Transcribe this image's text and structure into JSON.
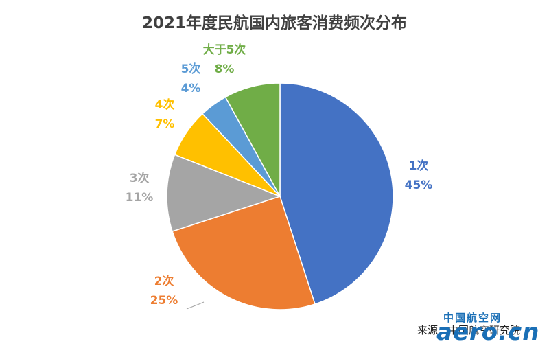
{
  "chart_data": {
    "type": "pie",
    "title": "2021年度民航国内旅客消费频次分布",
    "slices": [
      {
        "label": "1次",
        "value": 45,
        "pct_text": "45%",
        "color": "#4472C4"
      },
      {
        "label": "2次",
        "value": 25,
        "pct_text": "25%",
        "color": "#ED7D31"
      },
      {
        "label": "3次",
        "value": 11,
        "pct_text": "11%",
        "color": "#A5A5A5"
      },
      {
        "label": "4次",
        "value": 7,
        "pct_text": "7%",
        "color": "#FFC000"
      },
      {
        "label": "5次",
        "value": 4,
        "pct_text": "4%",
        "color": "#5B9BD5"
      },
      {
        "label": "大于5次",
        "value": 8,
        "pct_text": "8%",
        "color": "#70AD47"
      }
    ],
    "legend": "none"
  },
  "source_note": "来源：中国航空研究院",
  "watermark": {
    "cn": "中国航空网",
    "en": "aero.cn"
  }
}
